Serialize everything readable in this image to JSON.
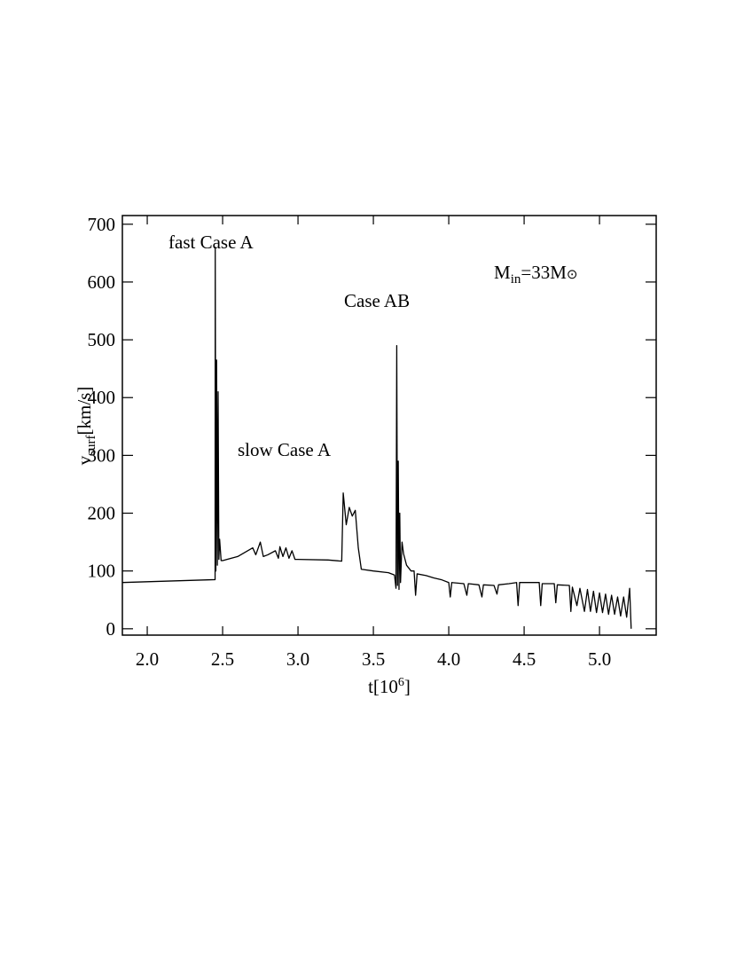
{
  "chart_data": {
    "type": "line",
    "color": "#000000",
    "xlabel": {
      "main": "t[10",
      "sup": "6",
      "end": "]"
    },
    "ylabel": {
      "main": "v",
      "sub": "surf",
      "end": "[km/s]"
    },
    "annotations": {
      "fast": "fast Case A",
      "slow": "slow Case A",
      "ab": "Case AB",
      "mass": {
        "main": "M",
        "sub": "in",
        "mid": "=33M",
        "sym": "⊙"
      }
    },
    "xlim": [
      1.835,
      5.376
    ],
    "ylim": [
      -11,
      715
    ],
    "xticks": [
      {
        "value": 2,
        "label": "2.0"
      },
      {
        "value": 2.5,
        "label": "2.5"
      },
      {
        "value": 3,
        "label": "3.0"
      },
      {
        "value": 3.5,
        "label": "3.5"
      },
      {
        "value": 4,
        "label": "4.0"
      },
      {
        "value": 4.5,
        "label": "4.5"
      },
      {
        "value": 5,
        "label": "5.0"
      }
    ],
    "yticks": [
      0,
      100,
      200,
      300,
      400,
      500,
      600,
      700
    ],
    "x": [
      1.835,
      2.45,
      2.451,
      2.455,
      2.46,
      2.465,
      2.47,
      2.475,
      2.48,
      2.49,
      2.5,
      2.6,
      2.7,
      2.72,
      2.75,
      2.77,
      2.8,
      2.85,
      2.87,
      2.88,
      2.9,
      2.92,
      2.94,
      2.96,
      2.98,
      3.0,
      3.2,
      3.29,
      3.3,
      3.32,
      3.34,
      3.36,
      3.38,
      3.4,
      3.42,
      3.5,
      3.6,
      3.64,
      3.65,
      3.655,
      3.66,
      3.665,
      3.67,
      3.675,
      3.68,
      3.69,
      3.7,
      3.72,
      3.75,
      3.77,
      3.78,
      3.79,
      3.85,
      3.9,
      3.95,
      4.0,
      4.01,
      4.02,
      4.1,
      4.12,
      4.13,
      4.2,
      4.22,
      4.23,
      4.3,
      4.32,
      4.33,
      4.4,
      4.45,
      4.46,
      4.47,
      4.6,
      4.61,
      4.62,
      4.7,
      4.71,
      4.72,
      4.8,
      4.81,
      4.82,
      4.85,
      4.87,
      4.9,
      4.92,
      4.94,
      4.96,
      4.98,
      5.0,
      5.02,
      5.04,
      5.06,
      5.08,
      5.1,
      5.12,
      5.14,
      5.16,
      5.18,
      5.2,
      5.21
    ],
    "values": [
      80,
      85,
      660,
      100,
      465,
      110,
      410,
      120,
      155,
      118,
      118,
      125,
      140,
      128,
      150,
      125,
      128,
      135,
      122,
      142,
      125,
      140,
      122,
      135,
      120,
      120,
      119,
      117,
      235,
      180,
      210,
      195,
      205,
      140,
      103,
      100,
      97,
      93,
      70,
      490,
      75,
      290,
      68,
      200,
      80,
      150,
      130,
      110,
      100,
      100,
      58,
      95,
      92,
      88,
      85,
      80,
      55,
      80,
      78,
      58,
      78,
      76,
      55,
      76,
      75,
      60,
      76,
      78,
      80,
      40,
      80,
      80,
      40,
      78,
      78,
      45,
      76,
      75,
      30,
      72,
      40,
      70,
      30,
      68,
      30,
      65,
      28,
      62,
      28,
      60,
      25,
      58,
      25,
      55,
      22,
      55,
      20,
      70,
      0
    ]
  }
}
